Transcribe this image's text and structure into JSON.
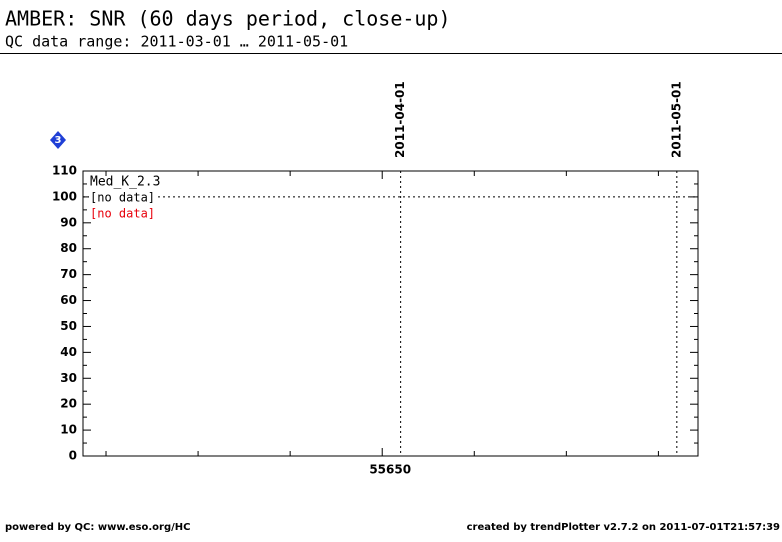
{
  "chart_data": {
    "type": "empty-trend",
    "title": "AMBER: SNR (60 days period, close-up)",
    "subtitle": "QC data range: 2011-03-01 … 2011-05-01",
    "badge": "3",
    "xlim": [
      55617.5,
      55684.3
    ],
    "xticks": [
      55650
    ],
    "xminorticks": [
      55620,
      55630,
      55640,
      55660,
      55670,
      55680
    ],
    "ylim": [
      0,
      110
    ],
    "yticks": [
      0,
      10,
      20,
      30,
      40,
      50,
      60,
      70,
      80,
      90,
      100,
      110
    ],
    "vlines": [
      {
        "x": 55652,
        "label": "2011-04-01"
      },
      {
        "x": 55682,
        "label": "2011-05-01"
      }
    ],
    "hline": 100,
    "legend_title": "Med_K_2.3",
    "legend_entries": [
      {
        "text": "[no data]",
        "color": "#000000"
      },
      {
        "text": "[no data]",
        "color": "#e8000b"
      }
    ],
    "footer_left": "powered by QC: www.eso.org/HC",
    "footer_right": "created by trendPlotter v2.7.2 on 2011-07-01T21:57:39"
  }
}
